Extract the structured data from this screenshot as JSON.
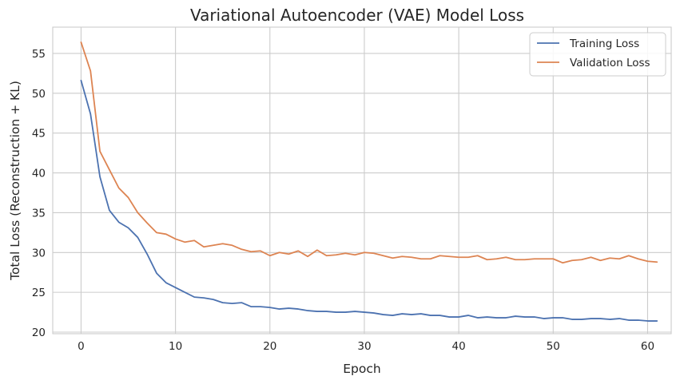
{
  "chart_data": {
    "type": "line",
    "title": "Variational Autoencoder (VAE) Model Loss",
    "xlabel": "Epoch",
    "ylabel": "Total Loss (Reconstruction + KL)",
    "xlim": [
      -3,
      62.5
    ],
    "ylim": [
      19.8,
      58.3
    ],
    "xticks": [
      0,
      10,
      20,
      30,
      40,
      50,
      60
    ],
    "yticks": [
      20,
      25,
      30,
      35,
      40,
      45,
      50,
      55
    ],
    "grid": true,
    "legend_position": "top-right",
    "x": [
      0,
      1,
      2,
      3,
      4,
      5,
      6,
      7,
      8,
      9,
      10,
      11,
      12,
      13,
      14,
      15,
      16,
      17,
      18,
      19,
      20,
      21,
      22,
      23,
      24,
      25,
      26,
      27,
      28,
      29,
      30,
      31,
      32,
      33,
      34,
      35,
      36,
      37,
      38,
      39,
      40,
      41,
      42,
      43,
      44,
      45,
      46,
      47,
      48,
      49,
      50,
      51,
      52,
      53,
      54,
      55,
      56,
      57,
      58,
      59,
      60,
      61
    ],
    "series": [
      {
        "name": "Training Loss",
        "color": "#4c72b0",
        "values": [
          51.6,
          47.4,
          39.5,
          35.3,
          33.8,
          33.1,
          31.9,
          29.8,
          27.4,
          26.2,
          25.6,
          25.0,
          24.4,
          24.3,
          24.1,
          23.7,
          23.6,
          23.7,
          23.2,
          23.2,
          23.1,
          22.9,
          23.0,
          22.9,
          22.7,
          22.6,
          22.6,
          22.5,
          22.5,
          22.6,
          22.5,
          22.4,
          22.2,
          22.1,
          22.3,
          22.2,
          22.3,
          22.1,
          22.1,
          21.9,
          21.9,
          22.1,
          21.8,
          21.9,
          21.8,
          21.8,
          22.0,
          21.9,
          21.9,
          21.7,
          21.8,
          21.8,
          21.6,
          21.6,
          21.7,
          21.7,
          21.6,
          21.7,
          21.5,
          21.5,
          21.4,
          21.4
        ]
      },
      {
        "name": "Validation Loss",
        "color": "#dd8452",
        "values": [
          56.4,
          52.8,
          42.7,
          40.4,
          38.1,
          36.9,
          35.0,
          33.7,
          32.5,
          32.3,
          31.7,
          31.3,
          31.5,
          30.7,
          30.9,
          31.1,
          30.9,
          30.4,
          30.1,
          30.2,
          29.6,
          30.0,
          29.8,
          30.2,
          29.5,
          30.3,
          29.6,
          29.7,
          29.9,
          29.7,
          30.0,
          29.9,
          29.6,
          29.3,
          29.5,
          29.4,
          29.2,
          29.2,
          29.6,
          29.5,
          29.4,
          29.4,
          29.6,
          29.1,
          29.2,
          29.4,
          29.1,
          29.1,
          29.2,
          29.2,
          29.2,
          28.7,
          29.0,
          29.1,
          29.4,
          29.0,
          29.3,
          29.2,
          29.6,
          29.2,
          28.9,
          28.8
        ]
      }
    ]
  }
}
